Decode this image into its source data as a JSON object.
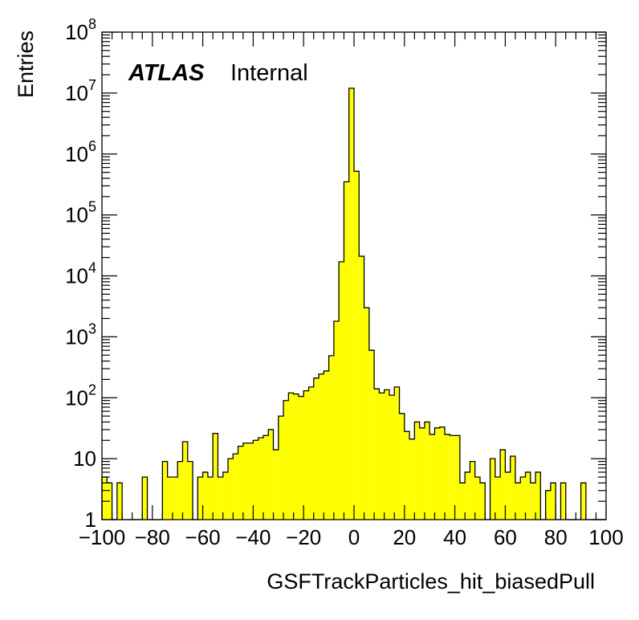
{
  "chart_data": {
    "type": "bar",
    "subtype": "histogram",
    "title": "",
    "xlabel": "GSFTrackParticles_hit_biasedPull",
    "ylabel": "Entries",
    "xlim": [
      -100,
      100
    ],
    "ylim": [
      1,
      100000000
    ],
    "yscale": "log",
    "grid": false,
    "legend": "none",
    "bin_width": 2,
    "fill_color": "#ffff00",
    "line_color": "#000000",
    "x_ticks": [
      -100,
      -80,
      -60,
      -40,
      -20,
      0,
      20,
      40,
      60,
      80,
      100
    ],
    "x_tick_labels": [
      "−100",
      "−80",
      "−60",
      "−40",
      "−20",
      "0",
      "20",
      "40",
      "60",
      "80",
      "100"
    ],
    "y_tick_labels": [
      {
        "value": 1,
        "base": "1",
        "exp": ""
      },
      {
        "value": 10,
        "base": "10",
        "exp": ""
      },
      {
        "value": 100,
        "base": "10",
        "exp": "2"
      },
      {
        "value": 1000,
        "base": "10",
        "exp": "3"
      },
      {
        "value": 10000,
        "base": "10",
        "exp": "4"
      },
      {
        "value": 100000,
        "base": "10",
        "exp": "5"
      },
      {
        "value": 1000000,
        "base": "10",
        "exp": "6"
      },
      {
        "value": 10000000,
        "base": "10",
        "exp": "7"
      },
      {
        "value": 100000000,
        "base": "10",
        "exp": "8"
      }
    ],
    "annotations": [
      {
        "text": "ATLAS",
        "style": "bold-italic"
      },
      {
        "text": "Internal",
        "style": "normal"
      }
    ],
    "bin_low_edges": [
      -100,
      -98,
      -96,
      -94,
      -92,
      -90,
      -88,
      -86,
      -84,
      -82,
      -80,
      -78,
      -76,
      -74,
      -72,
      -70,
      -68,
      -66,
      -64,
      -62,
      -60,
      -58,
      -56,
      -54,
      -52,
      -50,
      -48,
      -46,
      -44,
      -42,
      -40,
      -38,
      -36,
      -34,
      -32,
      -30,
      -28,
      -26,
      -24,
      -22,
      -20,
      -18,
      -16,
      -14,
      -12,
      -10,
      -8,
      -6,
      -4,
      -2,
      0,
      2,
      4,
      6,
      8,
      10,
      12,
      14,
      16,
      18,
      20,
      22,
      24,
      26,
      28,
      30,
      32,
      34,
      36,
      38,
      40,
      42,
      44,
      46,
      48,
      50,
      52,
      54,
      56,
      58,
      60,
      62,
      64,
      66,
      68,
      70,
      72,
      74,
      76,
      78,
      80,
      82,
      84,
      86,
      88,
      90,
      92,
      94,
      96,
      98
    ],
    "values": [
      5,
      4,
      0,
      4,
      0,
      0,
      0,
      0,
      5,
      0,
      0,
      0,
      9,
      5,
      5,
      9,
      19,
      9,
      0,
      5,
      6,
      5,
      26,
      5,
      6,
      10,
      12,
      16,
      18,
      18,
      20,
      22,
      24,
      30,
      14,
      50,
      90,
      120,
      115,
      105,
      130,
      150,
      210,
      245,
      275,
      490,
      1800,
      17000,
      350000,
      12000000,
      520000,
      21000,
      3000,
      600,
      140,
      120,
      135,
      110,
      150,
      55,
      28,
      21,
      40,
      32,
      40,
      25,
      32,
      33,
      25,
      24,
      24,
      4,
      6,
      9,
      5,
      4,
      1,
      10,
      5,
      14,
      6,
      11,
      4,
      5,
      6,
      4,
      6,
      1,
      3,
      4,
      0,
      4,
      0,
      0,
      0,
      4,
      0,
      0,
      0,
      0
    ]
  }
}
